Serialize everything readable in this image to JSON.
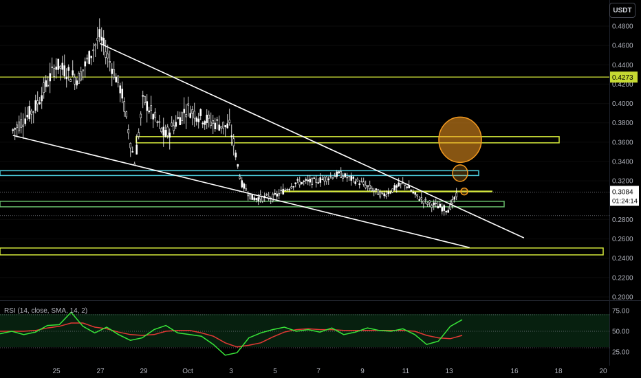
{
  "currency": "USDT",
  "rsi_label": "RSI (14, close, SMA, 14, 2)",
  "colors": {
    "background": "#000000",
    "candle": "#ffffff",
    "yellow_line": "#d4e83a",
    "cyan_line": "#4dd0e1",
    "green_line": "#66bb6a",
    "trendline": "#ffffff",
    "orange_circle": "#f59b20",
    "rsi_line": "#39e639",
    "rsi_ma": "#e53935",
    "current_price_label": "#ffffff",
    "level_label": "#c5d932"
  },
  "chart_data": [
    {
      "type": "candlestick",
      "x_tick_labels": [
        "25",
        "27",
        "29",
        "Oct",
        "3",
        "5",
        "7",
        "9",
        "11",
        "13",
        "16",
        "18",
        "20"
      ],
      "y_tick_labels": [
        "0.4800",
        "0.4600",
        "0.4400",
        "0.4200",
        "0.4000",
        "0.3800",
        "0.3600",
        "0.3400",
        "0.3200",
        "0.2800",
        "0.2600",
        "0.2400",
        "0.2200",
        "0.2000"
      ],
      "ylim": [
        0.2,
        0.5
      ],
      "current_price": "0.3084",
      "countdown": "01:24:14",
      "highlighted_level": "0.4273",
      "horizontal_levels": [
        {
          "price": 0.4273,
          "color": "yellow"
        },
        {
          "price": 0.3625,
          "color": "yellow",
          "style": "box"
        },
        {
          "price": 0.328,
          "color": "cyan",
          "style": "box"
        },
        {
          "price": 0.309,
          "color": "yellow"
        },
        {
          "price": 0.296,
          "color": "green",
          "style": "box"
        },
        {
          "price": 0.247,
          "color": "yellow",
          "style": "box"
        }
      ],
      "trendlines": [
        {
          "from": [
            "Sep 27",
            0.462
          ],
          "to": [
            "Oct 16.5",
            0.261
          ]
        },
        {
          "from": [
            "Sep 23",
            0.367
          ],
          "to": [
            "Oct 14",
            0.251
          ]
        }
      ],
      "annotations": [
        "orange circles marking price targets near 0.3625, 0.3280 and 0.3090"
      ],
      "price_path": [
        [
          "Sep 23",
          0.372
        ],
        [
          "Sep 24",
          0.395
        ],
        [
          "Sep 25",
          0.44
        ],
        [
          "Sep 26",
          0.425
        ],
        [
          "Sep 27",
          0.47
        ],
        [
          "Sep 28",
          0.412
        ],
        [
          "Sep 28.6",
          0.338
        ],
        [
          "Sep 29",
          0.405
        ],
        [
          "Sep 30",
          0.366
        ],
        [
          "Oct 1",
          0.395
        ],
        [
          "Oct 2",
          0.382
        ],
        [
          "Oct 3",
          0.375
        ],
        [
          "Oct 3.5",
          0.318
        ],
        [
          "Oct 4",
          0.302
        ],
        [
          "Oct 5",
          0.303
        ],
        [
          "Oct 6",
          0.318
        ],
        [
          "Oct 7",
          0.32
        ],
        [
          "Oct 8",
          0.327
        ],
        [
          "Oct 9",
          0.318
        ],
        [
          "Oct 10",
          0.305
        ],
        [
          "Oct 11",
          0.318
        ],
        [
          "Oct 11.5",
          0.305
        ],
        [
          "Oct 12",
          0.298
        ],
        [
          "Oct 13",
          0.29
        ],
        [
          "Oct 13.4",
          0.304
        ]
      ]
    },
    {
      "type": "line",
      "title": "RSI (14, close, SMA, 14, 2)",
      "y_tick_labels": [
        "75.00",
        "50.00",
        "25.00"
      ],
      "ylim": [
        15,
        85
      ],
      "levels": [
        70,
        50,
        30
      ],
      "series": [
        {
          "values": [
            47,
            50,
            46,
            49,
            57,
            58,
            73,
            56,
            48,
            55,
            46,
            39,
            42,
            52,
            57,
            48,
            46,
            44,
            34,
            21,
            24,
            42,
            48,
            52,
            55,
            50,
            52,
            49,
            54,
            46,
            49,
            54,
            51,
            50,
            53,
            46,
            34,
            38,
            56,
            64
          ]
        },
        {
          "values": [
            50,
            50,
            50,
            51,
            54,
            56,
            60,
            60,
            55,
            53,
            49,
            46,
            45,
            46,
            50,
            51,
            51,
            48,
            44,
            36,
            31,
            33,
            36,
            43,
            49,
            52,
            53,
            52,
            52,
            51,
            51,
            51,
            51,
            51,
            51,
            50,
            45,
            42,
            41,
            45
          ]
        }
      ]
    }
  ]
}
